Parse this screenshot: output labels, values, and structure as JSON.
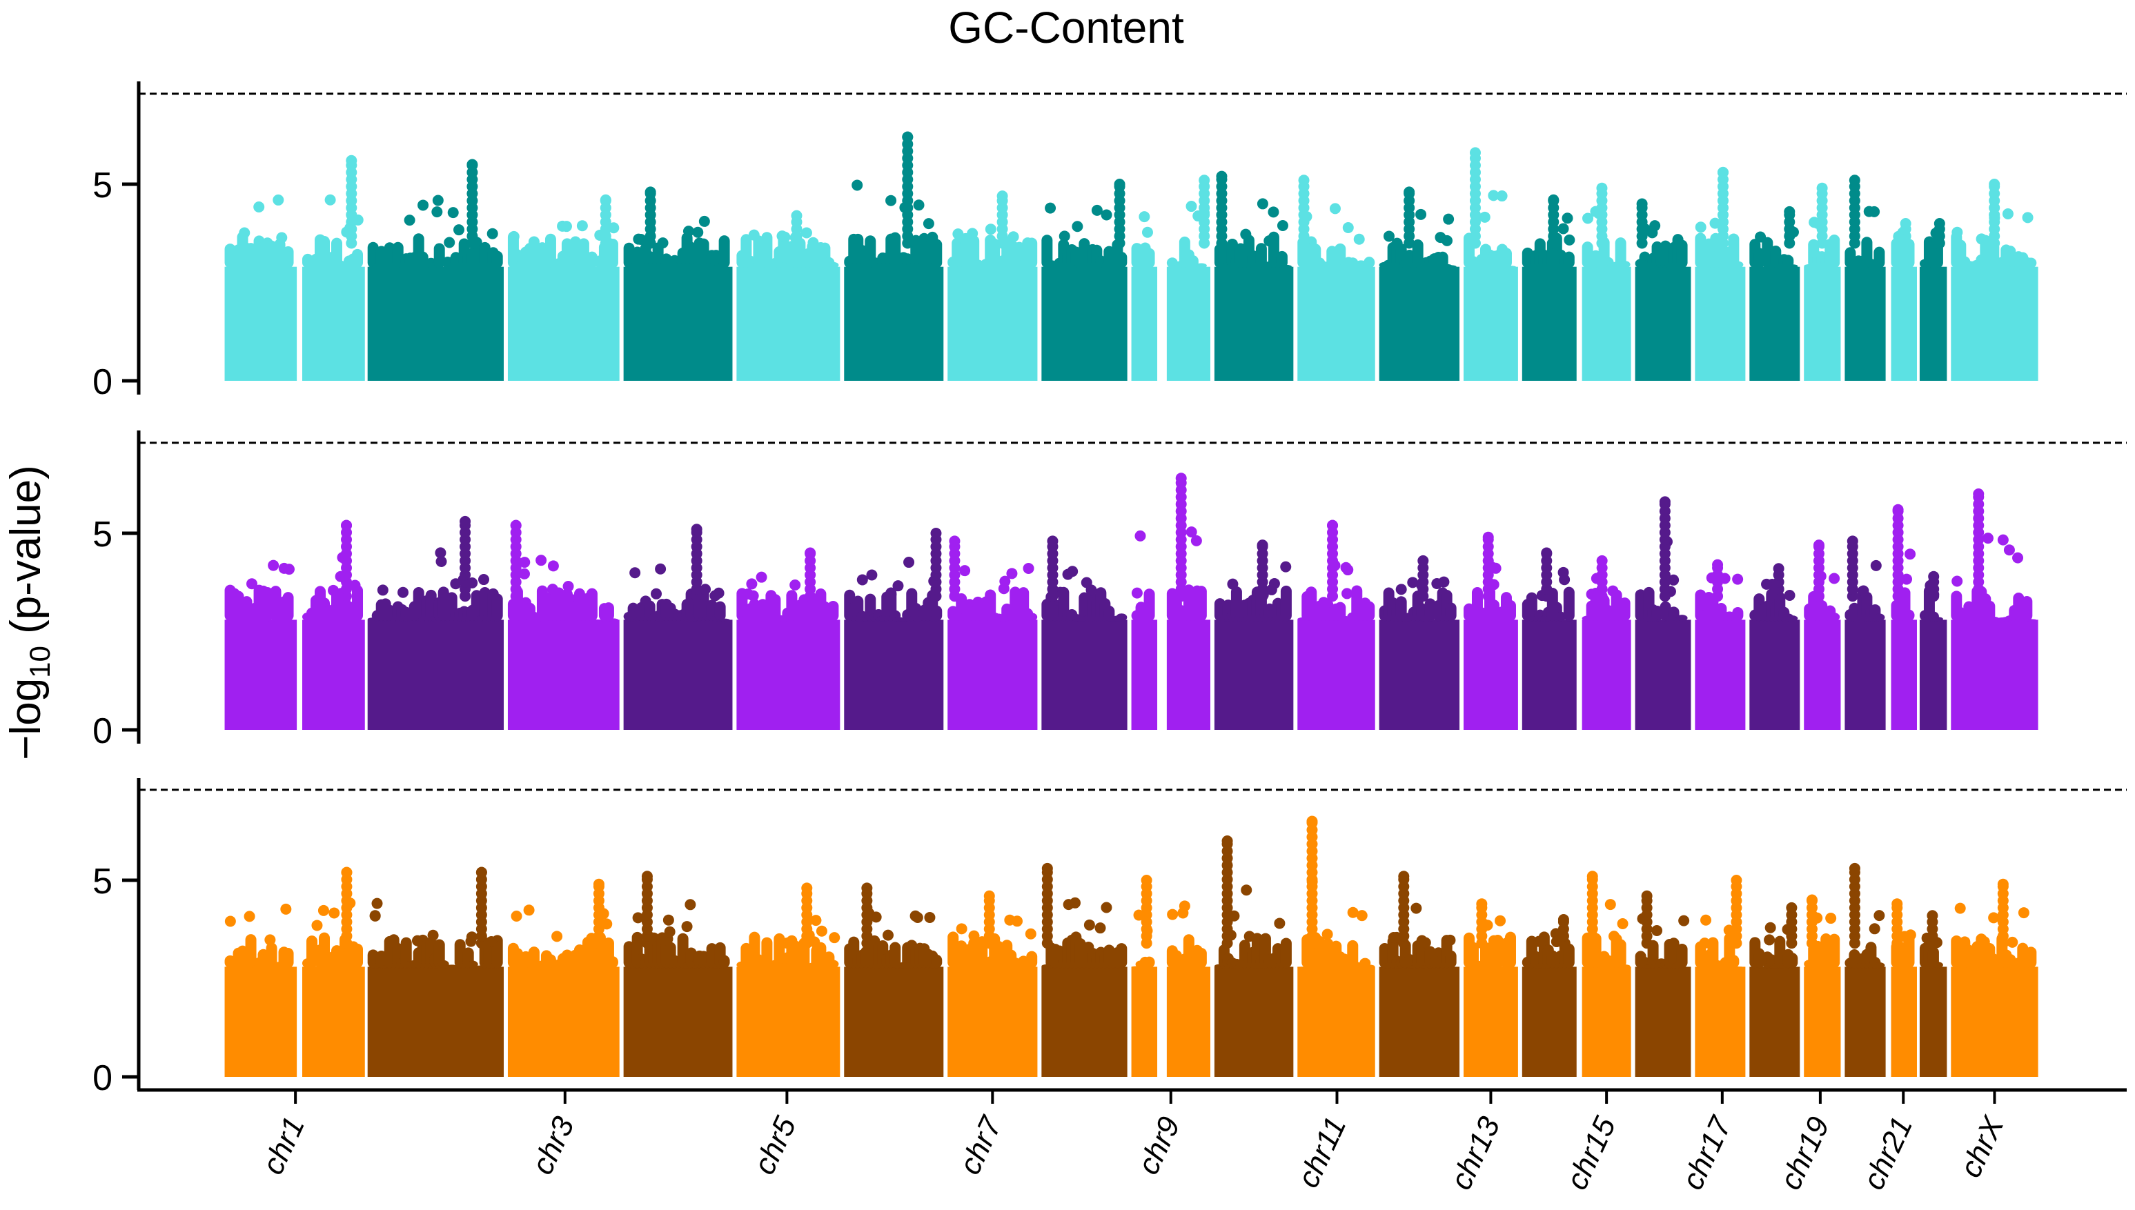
{
  "chart_data": {
    "type": "scatter",
    "subtype": "manhattan",
    "title": "GC-Content",
    "xlabel": "",
    "ylabel": "−log10 (p-value)",
    "ylabel_parts": {
      "prefix": "−log",
      "subscript": "10",
      "suffix": " (p-value)"
    },
    "ylim": [
      0,
      7.6
    ],
    "yticks": [
      0,
      5
    ],
    "significance_threshold": 7.3,
    "threshold_style": "dashed",
    "grid": false,
    "legend": "none",
    "chromosomes": [
      "chr1",
      "chr2",
      "chr3",
      "chr4",
      "chr5",
      "chr6",
      "chr7",
      "chr8",
      "chr9",
      "chr10",
      "chr11",
      "chr12",
      "chr13",
      "chr14",
      "chr15",
      "chr16",
      "chr17",
      "chr18",
      "chr19",
      "chr20",
      "chr21",
      "chr22",
      "chrX"
    ],
    "xtick_labels": [
      "chr1",
      "chr3",
      "chr5",
      "chr7",
      "chr9",
      "chr11",
      "chr13",
      "chr15",
      "chr17",
      "chr19",
      "chr21",
      "chrX"
    ],
    "panels": [
      {
        "colors": {
          "odd": "#5CE1E3",
          "even": "#008B8A"
        },
        "bulk_level": 3.5,
        "max_per_chromosome": [
          5.6,
          5.5,
          4.6,
          4.8,
          4.2,
          6.2,
          4.7,
          5.0,
          5.1,
          5.2,
          5.1,
          4.8,
          5.8,
          4.6,
          4.9,
          4.5,
          5.3,
          4.3,
          4.9,
          5.1,
          4.0,
          4.0,
          5.0
        ]
      },
      {
        "colors": {
          "odd": "#A020F0",
          "even": "#551A8B"
        },
        "bulk_level": 3.4,
        "max_per_chromosome": [
          5.2,
          5.3,
          5.2,
          5.1,
          4.5,
          5.0,
          4.8,
          4.8,
          6.4,
          4.7,
          5.2,
          4.3,
          4.9,
          4.5,
          4.3,
          5.8,
          4.2,
          4.1,
          4.7,
          4.8,
          5.6,
          3.9,
          6.0
        ]
      },
      {
        "colors": {
          "odd": "#FF8C00",
          "even": "#8B4500"
        },
        "bulk_level": 3.4,
        "max_per_chromosome": [
          5.2,
          5.2,
          4.9,
          5.1,
          4.8,
          4.8,
          4.6,
          5.3,
          5.0,
          6.0,
          6.5,
          5.1,
          4.4,
          4.0,
          5.1,
          4.6,
          5.0,
          4.3,
          4.5,
          5.3,
          4.4,
          4.1,
          4.9
        ]
      }
    ]
  }
}
